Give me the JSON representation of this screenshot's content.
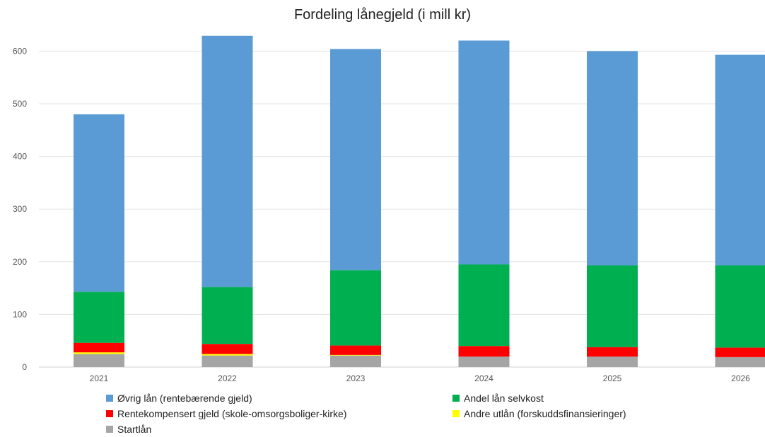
{
  "chart_data": {
    "type": "bar",
    "stacked": true,
    "title": "Fordeling lånegjeld (i mill kr)",
    "xlabel": "",
    "ylabel": "",
    "ylim": [
      0,
      630
    ],
    "yticks": [
      0,
      100,
      200,
      300,
      400,
      500,
      600
    ],
    "grid": true,
    "legend_position": "bottom",
    "categories": [
      "2021",
      "2022",
      "2023",
      "2024",
      "2025",
      "2026"
    ],
    "series": [
      {
        "name": "Startlån",
        "color": "#A5A5A5",
        "values": [
          25,
          22,
          22,
          20,
          20,
          19
        ]
      },
      {
        "name": "Andre utlån (forskuddsfinansieringer)",
        "color": "#FFFF00",
        "values": [
          3,
          3,
          1,
          0,
          0,
          0
        ]
      },
      {
        "name": "Rentekompensert gjeld (skole-omsorgsboliger-kirke)",
        "color": "#FF0000",
        "values": [
          18,
          19,
          18,
          20,
          18,
          18
        ]
      },
      {
        "name": "Andel lån selvkost",
        "color": "#00B050",
        "values": [
          97,
          108,
          143,
          155,
          155,
          156
        ]
      },
      {
        "name": "Øvrig lån (rentebærende gjeld)",
        "color": "#5B9BD5",
        "values": [
          337,
          477,
          420,
          425,
          407,
          400
        ]
      }
    ],
    "legend_order": [
      "Øvrig lån (rentebærende gjeld)",
      "Andel lån selvkost",
      "Rentekompensert gjeld (skole-omsorgsboliger-kirke)",
      "Andre utlån (forskuddsfinansieringer)",
      "Startlån"
    ]
  }
}
